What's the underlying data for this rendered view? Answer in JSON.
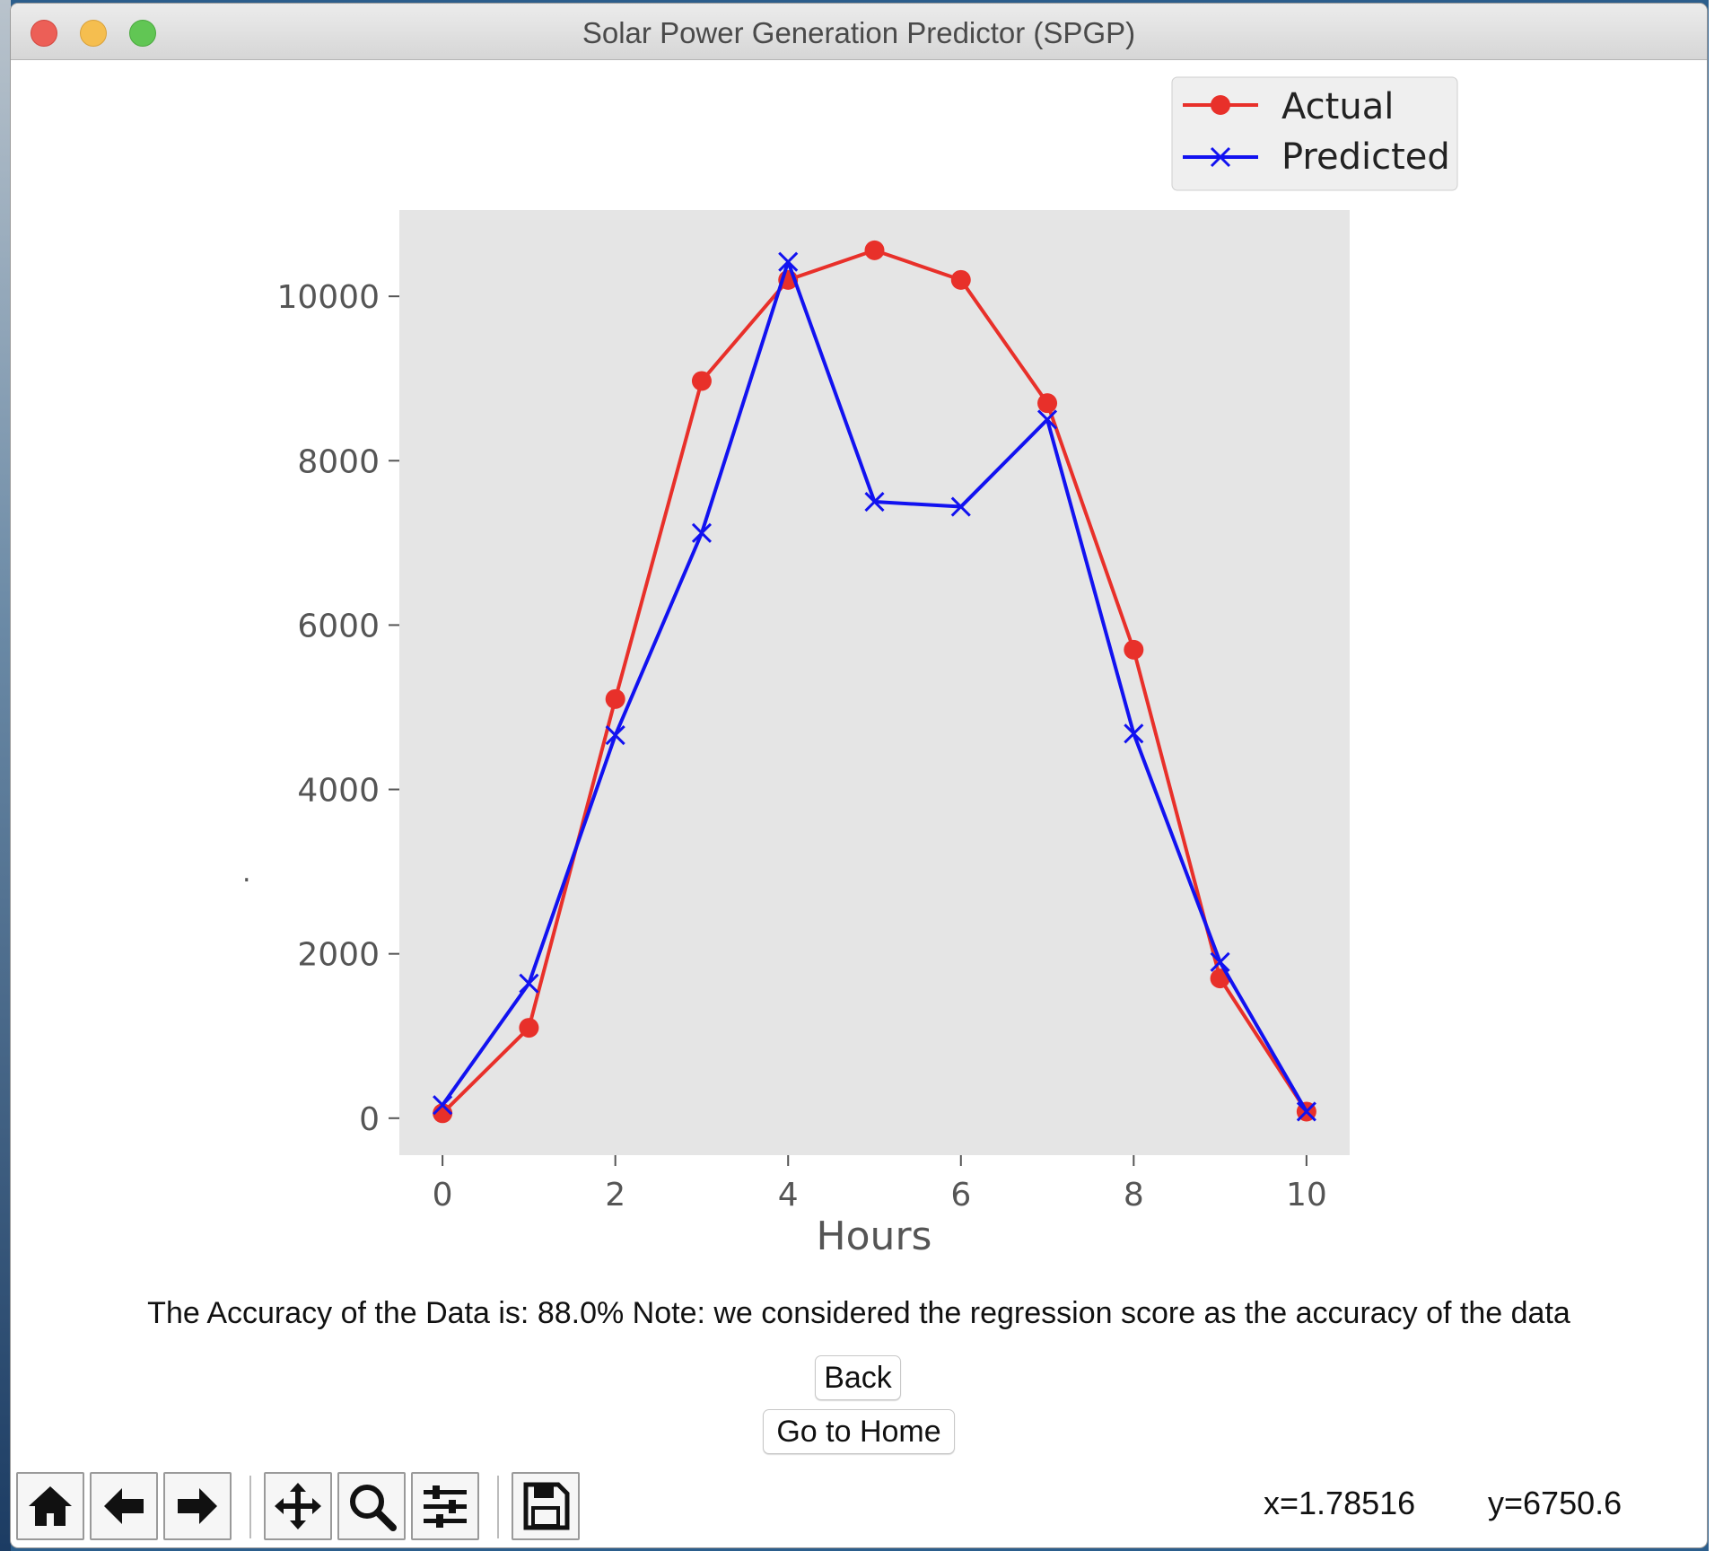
{
  "window": {
    "title": "Solar Power Generation Predictor (SPGP)"
  },
  "chart_data": {
    "type": "line",
    "x": [
      0,
      1,
      2,
      3,
      4,
      5,
      6,
      7,
      8,
      9,
      10
    ],
    "series": [
      {
        "name": "Actual",
        "color": "#e8302a",
        "marker": "circle",
        "values": [
          60,
          1100,
          5100,
          8970,
          10200,
          10560,
          10200,
          8700,
          5700,
          1700,
          80
        ]
      },
      {
        "name": "Predicted",
        "color": "#1212f0",
        "marker": "x",
        "values": [
          160,
          1640,
          4660,
          7120,
          10420,
          7500,
          7440,
          8500,
          4680,
          1900,
          80
        ]
      }
    ],
    "xlabel": "Hours",
    "ylabel": ".",
    "xlim": [
      -0.5,
      10.5
    ],
    "ylim": [
      -450,
      11050
    ],
    "xticks": [
      0,
      2,
      4,
      6,
      8,
      10
    ],
    "yticks": [
      0,
      2000,
      4000,
      6000,
      8000,
      10000
    ],
    "legend": "top-right, above plot",
    "grid": false,
    "plot_background": "#e5e5e5"
  },
  "results": {
    "accuracy_text": "The Accuracy of the Data is: 88.0% Note: we considered the regression score as the accuracy of the data"
  },
  "buttons": {
    "back_label": "Back",
    "home_label": "Go to Home"
  },
  "toolbar": {
    "items": [
      "home-icon",
      "back-arrow-icon",
      "forward-arrow-icon",
      "pan-icon",
      "zoom-icon",
      "configure-subplots-icon",
      "save-icon"
    ],
    "coord_x": "x=1.78516",
    "coord_y": "y=6750.6"
  }
}
